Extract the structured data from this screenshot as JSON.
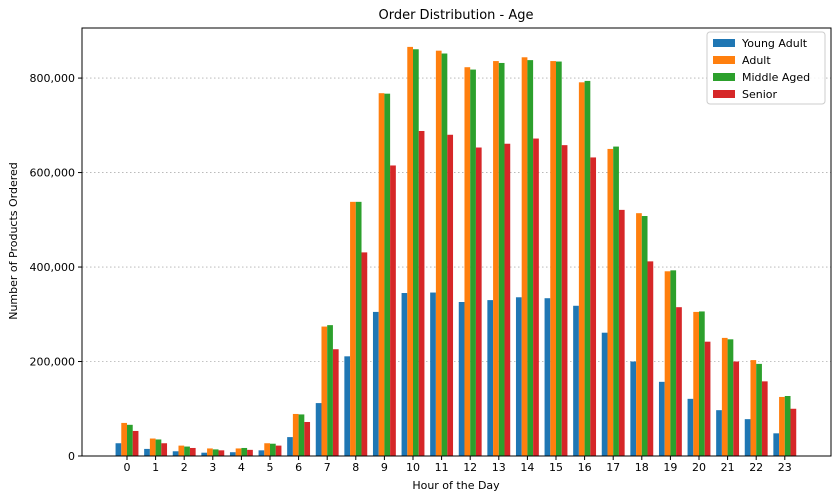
{
  "chart_data": {
    "type": "bar",
    "title": "Order Distribution - Age",
    "xlabel": "Hour of the Day",
    "ylabel": "Number of Products Ordered",
    "categories": [
      "0",
      "1",
      "2",
      "3",
      "4",
      "5",
      "6",
      "7",
      "8",
      "9",
      "10",
      "11",
      "12",
      "13",
      "14",
      "15",
      "16",
      "17",
      "18",
      "19",
      "20",
      "21",
      "22",
      "23"
    ],
    "series": [
      {
        "name": "Young Adult",
        "color": "#1f77b4",
        "values": [
          27000,
          15000,
          10000,
          7000,
          8000,
          12000,
          40000,
          112000,
          211000,
          305000,
          345000,
          346000,
          326000,
          330000,
          336000,
          334000,
          318000,
          261000,
          200000,
          157000,
          121000,
          97000,
          78000,
          48000
        ]
      },
      {
        "name": "Adult",
        "color": "#ff7f0e",
        "values": [
          70000,
          37000,
          22000,
          16000,
          16000,
          27000,
          89000,
          274000,
          538000,
          768000,
          866000,
          858000,
          823000,
          836000,
          844000,
          836000,
          791000,
          650000,
          514000,
          391000,
          305000,
          250000,
          203000,
          125000
        ]
      },
      {
        "name": "Middle Aged",
        "color": "#2ca02c",
        "values": [
          66000,
          35000,
          20000,
          14000,
          17000,
          26000,
          88000,
          277000,
          538000,
          767000,
          861000,
          852000,
          818000,
          832000,
          838000,
          835000,
          794000,
          655000,
          508000,
          393000,
          306000,
          247000,
          195000,
          127000
        ]
      },
      {
        "name": "Senior",
        "color": "#d62728",
        "values": [
          53000,
          27000,
          17000,
          12000,
          13000,
          22000,
          72000,
          226000,
          431000,
          615000,
          688000,
          680000,
          653000,
          661000,
          672000,
          658000,
          632000,
          521000,
          412000,
          315000,
          242000,
          200000,
          158000,
          100000
        ]
      }
    ],
    "ylim": [
      0,
      906000
    ],
    "yticks": [
      0,
      200000,
      400000,
      600000,
      800000
    ],
    "ytick_labels": [
      "0",
      "200,000",
      "400,000",
      "600,000",
      "800,000"
    ],
    "grid": "y-dotted",
    "legend": "top-right"
  }
}
